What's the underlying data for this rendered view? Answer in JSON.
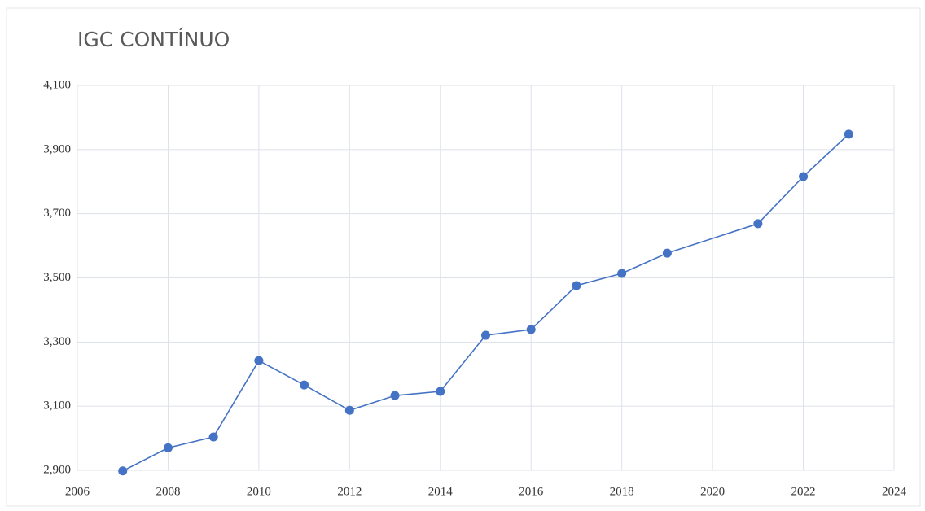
{
  "chart_data": {
    "type": "line",
    "title": "IGC CONTÍNUO",
    "x": [
      2007,
      2008,
      2009,
      2010,
      2011,
      2012,
      2013,
      2014,
      2015,
      2016,
      2017,
      2018,
      2019,
      2021,
      2022,
      2023
    ],
    "series": [
      {
        "color": "#4472c4",
        "values": [
          2.898,
          2.97,
          3.004,
          3.242,
          3.166,
          3.087,
          3.133,
          3.146,
          3.321,
          3.339,
          3.476,
          3.514,
          3.577,
          3.669,
          3.816,
          3.948
        ]
      }
    ],
    "xlim": [
      2006,
      2024
    ],
    "xticks": [
      2006,
      2008,
      2010,
      2012,
      2014,
      2016,
      2018,
      2020,
      2022,
      2024
    ],
    "ylim": [
      2.9,
      4.1
    ],
    "yticks": [
      {
        "value": 2.9,
        "label": "2,900"
      },
      {
        "value": 3.1,
        "label": "3,100"
      },
      {
        "value": 3.3,
        "label": "3,300"
      },
      {
        "value": 3.5,
        "label": "3,500"
      },
      {
        "value": 3.7,
        "label": "3,700"
      },
      {
        "value": 3.9,
        "label": "3,900"
      },
      {
        "value": 4.1,
        "label": "4,100"
      }
    ],
    "grid": true,
    "markers": true
  }
}
